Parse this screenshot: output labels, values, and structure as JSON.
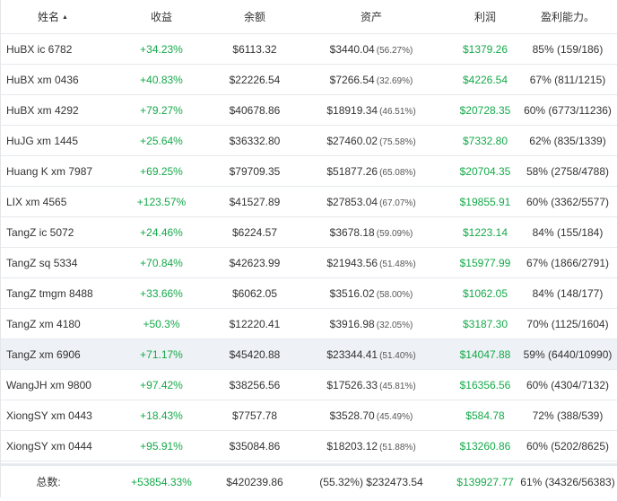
{
  "columns": {
    "name": "姓名",
    "profit": "收益",
    "balance": "余额",
    "assets": "资产",
    "pnl": "利润",
    "rate": "盈利能力。"
  },
  "rows": [
    {
      "name": "HuBX ic 6782",
      "profit": "+34.23%",
      "balance": "$6113.32",
      "assets": "$3440.04",
      "assets_pct": "(56.27%)",
      "pnl": "$1379.26",
      "rate": "85% (159/186)"
    },
    {
      "name": "HuBX xm 0436",
      "profit": "+40.83%",
      "balance": "$22226.54",
      "assets": "$7266.54",
      "assets_pct": "(32.69%)",
      "pnl": "$4226.54",
      "rate": "67% (811/1215)"
    },
    {
      "name": "HuBX xm 4292",
      "profit": "+79.27%",
      "balance": "$40678.86",
      "assets": "$18919.34",
      "assets_pct": "(46.51%)",
      "pnl": "$20728.35",
      "rate": "60% (6773/11236)"
    },
    {
      "name": "HuJG xm 1445",
      "profit": "+25.64%",
      "balance": "$36332.80",
      "assets": "$27460.02",
      "assets_pct": "(75.58%)",
      "pnl": "$7332.80",
      "rate": "62% (835/1339)"
    },
    {
      "name": "Huang K xm 7987",
      "profit": "+69.25%",
      "balance": "$79709.35",
      "assets": "$51877.26",
      "assets_pct": "(65.08%)",
      "pnl": "$20704.35",
      "rate": "58% (2758/4788)"
    },
    {
      "name": "LIX xm 4565",
      "profit": "+123.57%",
      "balance": "$41527.89",
      "assets": "$27853.04",
      "assets_pct": "(67.07%)",
      "pnl": "$19855.91",
      "rate": "60% (3362/5577)"
    },
    {
      "name": "TangZ ic 5072",
      "profit": "+24.46%",
      "balance": "$6224.57",
      "assets": "$3678.18",
      "assets_pct": "(59.09%)",
      "pnl": "$1223.14",
      "rate": "84% (155/184)"
    },
    {
      "name": "TangZ sq 5334",
      "profit": "+70.84%",
      "balance": "$42623.99",
      "assets": "$21943.56",
      "assets_pct": "(51.48%)",
      "pnl": "$15977.99",
      "rate": "67% (1866/2791)"
    },
    {
      "name": "TangZ tmgm 8488",
      "profit": "+33.66%",
      "balance": "$6062.05",
      "assets": "$3516.02",
      "assets_pct": "(58.00%)",
      "pnl": "$1062.05",
      "rate": "84% (148/177)"
    },
    {
      "name": "TangZ xm 4180",
      "profit": "+50.3%",
      "balance": "$12220.41",
      "assets": "$3916.98",
      "assets_pct": "(32.05%)",
      "pnl": "$3187.30",
      "rate": "70% (1125/1604)"
    },
    {
      "name": "TangZ xm 6906",
      "profit": "+71.17%",
      "balance": "$45420.88",
      "assets": "$23344.41",
      "assets_pct": "(51.40%)",
      "pnl": "$14047.88",
      "rate": "59% (6440/10990)"
    },
    {
      "name": "WangJH xm 9800",
      "profit": "+97.42%",
      "balance": "$38256.56",
      "assets": "$17526.33",
      "assets_pct": "(45.81%)",
      "pnl": "$16356.56",
      "rate": "60% (4304/7132)"
    },
    {
      "name": "XiongSY xm 0443",
      "profit": "+18.43%",
      "balance": "$7757.78",
      "assets": "$3528.70",
      "assets_pct": "(45.49%)",
      "pnl": "$584.78",
      "rate": "72% (388/539)"
    },
    {
      "name": "XiongSY xm 0444",
      "profit": "+95.91%",
      "balance": "$35084.86",
      "assets": "$18203.12",
      "assets_pct": "(51.88%)",
      "pnl": "$13260.86",
      "rate": "60% (5202/8625)"
    }
  ],
  "total": {
    "label": "总数:",
    "profit": "+53854.33%",
    "balance": "$420239.86",
    "assets": "(55.32%) $232473.54",
    "pnl": "$139927.77",
    "rate": "61% (34326/56383)"
  },
  "sort_icon": "sort-ascending-icon",
  "colors": {
    "positive": "#15a94a",
    "highlight_row": "#eef1f5",
    "border": "#e6e9ed"
  }
}
